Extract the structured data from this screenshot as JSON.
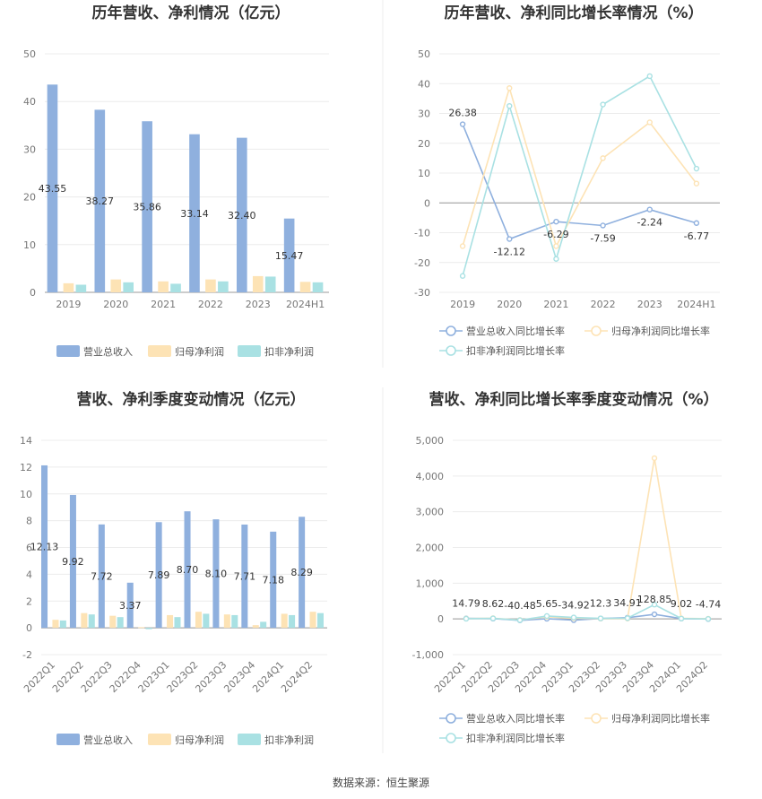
{
  "source": "数据来源：恒生聚源",
  "colors": {
    "revenue": "#8fb0de",
    "parent_profit": "#fde3b5",
    "deducted_profit": "#a9e1e3",
    "rev_growth": "#8fb0de",
    "parent_growth": "#fde3b5",
    "ded_growth": "#a9e1e3"
  },
  "chart_data": [
    {
      "type": "bar",
      "title": "历年营收、净利情况（亿元）",
      "categories": [
        "2019",
        "2020",
        "2021",
        "2022",
        "2023",
        "2024H1"
      ],
      "yticks": [
        "0",
        "10",
        "20",
        "30",
        "40",
        "50"
      ],
      "ylim": [
        0,
        50
      ],
      "series": [
        {
          "name": "营业总收入",
          "values": [
            43.55,
            38.27,
            35.86,
            33.14,
            32.4,
            15.47
          ],
          "labels": [
            "43.55",
            "38.27",
            "35.86",
            "33.14",
            "32.40",
            "15.47"
          ]
        },
        {
          "name": "归母净利润",
          "values": [
            1.9,
            2.7,
            2.3,
            2.7,
            3.4,
            2.2
          ]
        },
        {
          "name": "扣非净利润",
          "values": [
            1.6,
            2.1,
            1.8,
            2.3,
            3.3,
            2.1
          ]
        }
      ]
    },
    {
      "type": "line",
      "title": "历年营收、净利同比增长率情况（%）",
      "categories": [
        "2019",
        "2020",
        "2021",
        "2022",
        "2023",
        "2024H1"
      ],
      "yticks": [
        "-30",
        "-20",
        "-10",
        "0",
        "10",
        "20",
        "30",
        "40",
        "50"
      ],
      "ylim": [
        -30,
        50
      ],
      "series": [
        {
          "name": "营业总收入同比增长率",
          "values": [
            26.38,
            -12.12,
            -6.29,
            -7.59,
            -2.24,
            -6.77
          ],
          "labels": [
            "26.38",
            "-12.12",
            "-6.29",
            "-7.59",
            "-2.24",
            "-6.77"
          ]
        },
        {
          "name": "归母净利润同比增长率",
          "values": [
            -14.5,
            38.5,
            -14.5,
            15.0,
            27.0,
            6.5
          ]
        },
        {
          "name": "扣非净利润同比增长率",
          "values": [
            -24.5,
            32.5,
            -18.8,
            33.0,
            42.5,
            11.5
          ]
        }
      ]
    },
    {
      "type": "bar",
      "title": "营收、净利季度变动情况（亿元）",
      "categories": [
        "2022Q1",
        "2022Q2",
        "2022Q3",
        "2022Q4",
        "2023Q1",
        "2023Q2",
        "2023Q3",
        "2023Q4",
        "2024Q1",
        "2024Q2"
      ],
      "yticks": [
        "-2",
        "0",
        "2",
        "4",
        "6",
        "8",
        "10",
        "12",
        "14"
      ],
      "ylim": [
        -2,
        14
      ],
      "series": [
        {
          "name": "营业总收入",
          "values": [
            12.13,
            9.92,
            7.72,
            3.37,
            7.89,
            8.7,
            8.1,
            7.71,
            7.18,
            8.29
          ],
          "labels": [
            "12.13",
            "9.92",
            "7.72",
            "3.37",
            "7.89",
            "8.70",
            "8.10",
            "7.71",
            "7.18",
            "8.29"
          ]
        },
        {
          "name": "归母净利润",
          "values": [
            0.6,
            1.1,
            0.9,
            0.05,
            0.95,
            1.2,
            1.0,
            0.2,
            1.05,
            1.2
          ]
        },
        {
          "name": "扣非净利润",
          "values": [
            0.55,
            1.0,
            0.8,
            -0.1,
            0.8,
            1.05,
            0.95,
            0.45,
            0.95,
            1.1
          ]
        }
      ]
    },
    {
      "type": "line",
      "title": "营收、净利同比增长率季度变动情况（%）",
      "categories": [
        "2022Q1",
        "2022Q2",
        "2022Q3",
        "2022Q4",
        "2023Q1",
        "2023Q2",
        "2023Q3",
        "2023Q4",
        "2024Q1",
        "2024Q2"
      ],
      "yticks": [
        "-1,000",
        "0",
        "1,000",
        "2,000",
        "3,000",
        "4,000",
        "5,000"
      ],
      "ylim": [
        -1000,
        5000
      ],
      "series": [
        {
          "name": "营业总收入同比增长率",
          "values": [
            14.79,
            8.62,
            -40.48,
            5.65,
            -34.92,
            12.3,
            34.91,
            128.85,
            9.02,
            -4.74
          ],
          "labels": [
            "14.79",
            "8.62",
            "-40.48",
            "5.65",
            "-34.92",
            "12.3",
            "34.91",
            "128.85",
            "9.02",
            "-4.74"
          ]
        },
        {
          "name": "归母净利润同比增长率",
          "values": [
            10,
            20,
            -30,
            60,
            20,
            10,
            10,
            4500,
            15,
            5
          ]
        },
        {
          "name": "扣非净利润同比增长率",
          "values": [
            5,
            15,
            -35,
            80,
            40,
            15,
            20,
            400,
            10,
            0
          ]
        }
      ]
    }
  ]
}
